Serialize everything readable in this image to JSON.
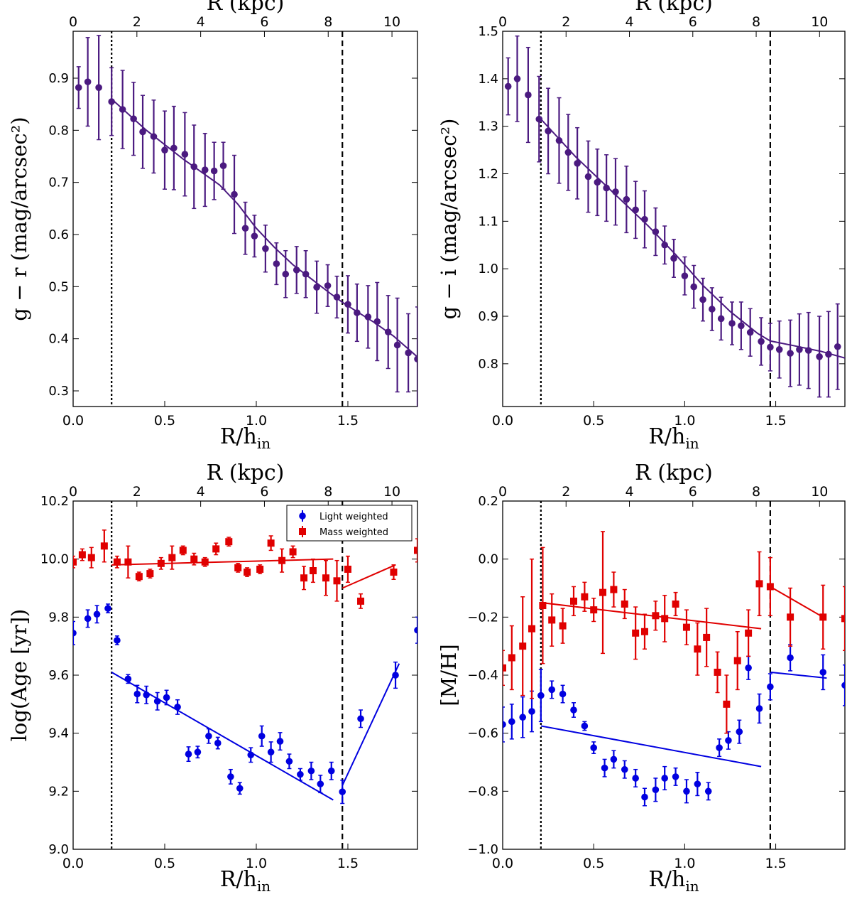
{
  "chart_data": [
    {
      "type": "scatter",
      "id": "gr",
      "ylabel": "g − r (mag/arcsec²)",
      "xlabel": "R/h_in",
      "top_xlabel": "R (kpc)",
      "xlim": [
        0.0,
        1.88
      ],
      "ylim": [
        0.27,
        0.99
      ],
      "xticks": [
        0.0,
        0.5,
        1.0,
        1.5
      ],
      "xtick_labels": [
        "0.0",
        "0.5",
        "1.0",
        "1.5"
      ],
      "yticks": [
        0.3,
        0.4,
        0.5,
        0.6,
        0.7,
        0.8,
        0.9
      ],
      "ytick_labels": [
        "0.3",
        "0.4",
        "0.5",
        "0.6",
        "0.7",
        "0.8",
        "0.9"
      ],
      "top_xlim": [
        0.0,
        10.8
      ],
      "top_xticks": [
        0,
        2,
        4,
        6,
        8,
        10
      ],
      "top_xtick_labels": [
        "0",
        "2",
        "4",
        "6",
        "8",
        "10"
      ],
      "vlines": [
        {
          "x": 0.21,
          "style": "dotted"
        },
        {
          "x": 1.47,
          "style": "dashed"
        }
      ],
      "series": [
        {
          "name": "g-r",
          "color": "#4b1a80",
          "marker": "circle",
          "x": [
            0.03,
            0.08,
            0.14,
            0.21,
            0.27,
            0.33,
            0.38,
            0.44,
            0.5,
            0.55,
            0.61,
            0.66,
            0.72,
            0.77,
            0.82,
            0.88,
            0.94,
            0.99,
            1.05,
            1.11,
            1.16,
            1.22,
            1.27,
            1.33,
            1.39,
            1.44,
            1.5,
            1.55,
            1.61,
            1.66,
            1.72,
            1.77,
            1.83,
            1.88
          ],
          "y": [
            0.882,
            0.893,
            0.882,
            0.855,
            0.84,
            0.822,
            0.797,
            0.788,
            0.762,
            0.766,
            0.754,
            0.73,
            0.724,
            0.722,
            0.732,
            0.677,
            0.612,
            0.597,
            0.573,
            0.544,
            0.524,
            0.532,
            0.524,
            0.499,
            0.502,
            0.48,
            0.466,
            0.45,
            0.442,
            0.433,
            0.413,
            0.388,
            0.373,
            0.361
          ],
          "err": [
            0.04,
            0.085,
            0.1,
            0.065,
            0.075,
            0.07,
            0.07,
            0.07,
            0.075,
            0.08,
            0.08,
            0.08,
            0.07,
            0.055,
            0.045,
            0.075,
            0.05,
            0.04,
            0.045,
            0.04,
            0.045,
            0.045,
            0.045,
            0.05,
            0.04,
            0.04,
            0.055,
            0.055,
            0.06,
            0.075,
            0.07,
            0.09,
            0.075,
            0.1
          ]
        }
      ],
      "fit_lines": [
        {
          "color": "#4b1a80",
          "x": [
            0.21,
            0.4,
            0.6,
            0.8,
            0.9,
            1.0,
            1.1,
            1.2,
            1.3,
            1.4,
            1.47,
            1.55,
            1.65,
            1.75,
            1.88
          ],
          "y": [
            0.86,
            0.8,
            0.745,
            0.695,
            0.658,
            0.612,
            0.575,
            0.542,
            0.515,
            0.488,
            0.47,
            0.452,
            0.43,
            0.405,
            0.365
          ]
        }
      ]
    },
    {
      "type": "scatter",
      "id": "gi",
      "ylabel": "g − i (mag/arcsec²)",
      "xlabel": "R/h_in",
      "top_xlabel": "R (kpc)",
      "xlim": [
        0.0,
        1.88
      ],
      "ylim": [
        0.71,
        1.5
      ],
      "xticks": [
        0.0,
        0.5,
        1.0,
        1.5
      ],
      "xtick_labels": [
        "0.0",
        "0.5",
        "1.0",
        "1.5"
      ],
      "yticks": [
        0.8,
        0.9,
        1.0,
        1.1,
        1.2,
        1.3,
        1.4,
        1.5
      ],
      "ytick_labels": [
        "0.8",
        "0.9",
        "1.0",
        "1.1",
        "1.2",
        "1.3",
        "1.4",
        "1.5"
      ],
      "top_xlim": [
        0.0,
        10.8
      ],
      "top_xticks": [
        0,
        2,
        4,
        6,
        8,
        10
      ],
      "top_xtick_labels": [
        "0",
        "2",
        "4",
        "6",
        "8",
        "10"
      ],
      "vlines": [
        {
          "x": 0.21,
          "style": "dotted"
        },
        {
          "x": 1.47,
          "style": "dashed"
        }
      ],
      "series": [
        {
          "name": "g-i",
          "color": "#4b1a80",
          "marker": "circle",
          "x": [
            0.03,
            0.08,
            0.14,
            0.2,
            0.25,
            0.31,
            0.36,
            0.41,
            0.47,
            0.52,
            0.57,
            0.62,
            0.68,
            0.73,
            0.78,
            0.84,
            0.89,
            0.94,
            1.0,
            1.05,
            1.1,
            1.15,
            1.2,
            1.26,
            1.31,
            1.36,
            1.42,
            1.47,
            1.52,
            1.58,
            1.63,
            1.68,
            1.74,
            1.79,
            1.84
          ],
          "y": [
            1.384,
            1.4,
            1.366,
            1.315,
            1.29,
            1.27,
            1.245,
            1.222,
            1.194,
            1.182,
            1.17,
            1.162,
            1.146,
            1.124,
            1.104,
            1.078,
            1.05,
            1.022,
            0.985,
            0.962,
            0.935,
            0.915,
            0.895,
            0.885,
            0.88,
            0.866,
            0.847,
            0.835,
            0.83,
            0.822,
            0.83,
            0.828,
            0.815,
            0.82,
            0.836
          ],
          "err": [
            0.06,
            0.09,
            0.1,
            0.09,
            0.09,
            0.09,
            0.08,
            0.075,
            0.075,
            0.07,
            0.07,
            0.07,
            0.07,
            0.06,
            0.06,
            0.05,
            0.04,
            0.04,
            0.04,
            0.045,
            0.045,
            0.045,
            0.045,
            0.045,
            0.05,
            0.05,
            0.05,
            0.05,
            0.06,
            0.07,
            0.075,
            0.08,
            0.085,
            0.09,
            0.09
          ]
        }
      ],
      "fit_lines": [
        {
          "color": "#4b1a80",
          "x": [
            0.21,
            0.4,
            0.6,
            0.8,
            0.95,
            1.1,
            1.25,
            1.4,
            1.47,
            1.6,
            1.75,
            1.88
          ],
          "y": [
            1.315,
            1.236,
            1.163,
            1.09,
            1.03,
            0.965,
            0.91,
            0.864,
            0.848,
            0.838,
            0.826,
            0.812
          ]
        }
      ]
    },
    {
      "type": "scatter",
      "id": "age",
      "ylabel": "log(Age [yr])",
      "xlabel": "R/h_in",
      "top_xlabel": "R (kpc)",
      "xlim": [
        0.0,
        1.88
      ],
      "ylim": [
        9.0,
        10.2
      ],
      "xticks": [
        0.0,
        0.5,
        1.0,
        1.5
      ],
      "xtick_labels": [
        "0.0",
        "0.5",
        "1.0",
        "1.5"
      ],
      "yticks": [
        9.0,
        9.2,
        9.4,
        9.6,
        9.8,
        10.0,
        10.2
      ],
      "ytick_labels": [
        "9.0",
        "9.2",
        "9.4",
        "9.6",
        "9.8",
        "10.0",
        "10.2"
      ],
      "top_xlim": [
        0.0,
        10.8
      ],
      "top_xticks": [
        0,
        2,
        4,
        6,
        8,
        10
      ],
      "top_xtick_labels": [
        "0",
        "2",
        "4",
        "6",
        "8",
        "10"
      ],
      "vlines": [
        {
          "x": 0.21,
          "style": "dotted"
        },
        {
          "x": 1.47,
          "style": "dashed"
        }
      ],
      "legend": {
        "position": "top-right",
        "entries": [
          "Light weighted",
          "Mass weighted"
        ]
      },
      "series": [
        {
          "name": "Light weighted",
          "color": "#0000e0",
          "marker": "circle",
          "x": [
            0.0,
            0.08,
            0.13,
            0.19,
            0.24,
            0.3,
            0.35,
            0.4,
            0.46,
            0.51,
            0.57,
            0.63,
            0.68,
            0.74,
            0.79,
            0.86,
            0.91,
            0.97,
            1.03,
            1.08,
            1.13,
            1.18,
            1.24,
            1.3,
            1.35,
            1.41,
            1.47,
            1.57,
            1.76,
            1.88
          ],
          "y": [
            9.745,
            9.795,
            9.81,
            9.83,
            9.72,
            9.587,
            9.535,
            9.532,
            9.51,
            9.523,
            9.49,
            9.328,
            9.335,
            9.39,
            9.366,
            9.25,
            9.21,
            9.325,
            9.39,
            9.335,
            9.372,
            9.303,
            9.258,
            9.27,
            9.225,
            9.27,
            9.198,
            9.45,
            9.6,
            9.755
          ],
          "err": [
            0.04,
            0.03,
            0.03,
            0.015,
            0.015,
            0.015,
            0.03,
            0.03,
            0.03,
            0.025,
            0.025,
            0.025,
            0.02,
            0.025,
            0.02,
            0.025,
            0.02,
            0.025,
            0.035,
            0.035,
            0.03,
            0.025,
            0.02,
            0.03,
            0.03,
            0.03,
            0.04,
            0.03,
            0.045,
            0.045
          ]
        },
        {
          "name": "Mass weighted",
          "color": "#e00000",
          "marker": "square",
          "x": [
            0.0,
            0.05,
            0.1,
            0.17,
            0.24,
            0.3,
            0.36,
            0.42,
            0.48,
            0.54,
            0.6,
            0.66,
            0.72,
            0.78,
            0.85,
            0.9,
            0.95,
            1.02,
            1.08,
            1.14,
            1.2,
            1.26,
            1.31,
            1.38,
            1.44,
            1.5,
            1.57,
            1.75,
            1.88
          ],
          "y": [
            9.99,
            10.015,
            10.005,
            10.045,
            9.99,
            9.99,
            9.94,
            9.95,
            9.985,
            10.005,
            10.03,
            10.0,
            9.99,
            10.035,
            10.06,
            9.97,
            9.955,
            9.965,
            10.055,
            9.995,
            10.025,
            9.935,
            9.96,
            9.935,
            9.925,
            9.965,
            9.855,
            9.955,
            10.03
          ],
          "err": [
            0.02,
            0.02,
            0.035,
            0.055,
            0.02,
            0.055,
            0.015,
            0.015,
            0.02,
            0.04,
            0.015,
            0.02,
            0.015,
            0.02,
            0.015,
            0.015,
            0.015,
            0.015,
            0.025,
            0.04,
            0.02,
            0.04,
            0.04,
            0.06,
            0.07,
            0.045,
            0.025,
            0.025,
            0.04
          ]
        }
      ],
      "fit_lines": [
        {
          "color": "#0000e0",
          "x": [
            0.21,
            1.42
          ],
          "y": [
            9.61,
            9.17
          ]
        },
        {
          "color": "#0000e0",
          "x": [
            1.47,
            1.78
          ],
          "y": [
            9.22,
            9.64
          ]
        },
        {
          "color": "#e00000",
          "x": [
            0.21,
            1.42
          ],
          "y": [
            9.98,
            10.0
          ]
        },
        {
          "color": "#e00000",
          "x": [
            1.47,
            1.76
          ],
          "y": [
            9.9,
            9.98
          ]
        }
      ]
    },
    {
      "type": "scatter",
      "id": "mh",
      "ylabel": "[M/H]",
      "xlabel": "R/h_in",
      "top_xlabel": "R (kpc)",
      "xlim": [
        0.0,
        1.88
      ],
      "ylim": [
        -1.0,
        0.2
      ],
      "xticks": [
        0.0,
        0.5,
        1.0,
        1.5
      ],
      "xtick_labels": [
        "0.0",
        "0.5",
        "1.0",
        "1.5"
      ],
      "yticks": [
        -1.0,
        -0.8,
        -0.6,
        -0.4,
        -0.2,
        0.0,
        0.2
      ],
      "ytick_labels": [
        "−1.0",
        "−0.8",
        "−0.6",
        "−0.4",
        "−0.2",
        "0.0",
        "0.2"
      ],
      "top_xlim": [
        0.0,
        10.8
      ],
      "top_xticks": [
        0,
        2,
        4,
        6,
        8,
        10
      ],
      "top_xtick_labels": [
        "0",
        "2",
        "4",
        "6",
        "8",
        "10"
      ],
      "vlines": [
        {
          "x": 0.21,
          "style": "dotted"
        },
        {
          "x": 1.47,
          "style": "dashed"
        }
      ],
      "series": [
        {
          "name": "Light weighted",
          "color": "#0000e0",
          "marker": "circle",
          "x": [
            0.0,
            0.05,
            0.11,
            0.16,
            0.21,
            0.27,
            0.33,
            0.39,
            0.45,
            0.5,
            0.56,
            0.61,
            0.67,
            0.73,
            0.78,
            0.84,
            0.89,
            0.95,
            1.01,
            1.07,
            1.13,
            1.19,
            1.24,
            1.3,
            1.35,
            1.41,
            1.47,
            1.58,
            1.76,
            1.88
          ],
          "y": [
            -0.57,
            -0.56,
            -0.545,
            -0.525,
            -0.47,
            -0.45,
            -0.465,
            -0.52,
            -0.575,
            -0.65,
            -0.72,
            -0.69,
            -0.725,
            -0.755,
            -0.82,
            -0.795,
            -0.755,
            -0.75,
            -0.8,
            -0.775,
            -0.8,
            -0.65,
            -0.625,
            -0.595,
            -0.375,
            -0.515,
            -0.44,
            -0.34,
            -0.39,
            -0.435
          ],
          "err": [
            0.06,
            0.06,
            0.07,
            0.07,
            0.09,
            0.03,
            0.03,
            0.025,
            0.015,
            0.02,
            0.03,
            0.03,
            0.03,
            0.03,
            0.03,
            0.04,
            0.04,
            0.03,
            0.04,
            0.04,
            0.03,
            0.03,
            0.03,
            0.04,
            0.04,
            0.05,
            0.045,
            0.045,
            0.06,
            0.07
          ]
        },
        {
          "name": "Mass weighted",
          "color": "#e00000",
          "marker": "square",
          "x": [
            0.0,
            0.05,
            0.11,
            0.16,
            0.22,
            0.27,
            0.33,
            0.39,
            0.45,
            0.5,
            0.55,
            0.61,
            0.67,
            0.73,
            0.78,
            0.84,
            0.89,
            0.95,
            1.01,
            1.07,
            1.12,
            1.18,
            1.23,
            1.29,
            1.35,
            1.41,
            1.47,
            1.58,
            1.76,
            1.88
          ],
          "y": [
            -0.375,
            -0.34,
            -0.3,
            -0.24,
            -0.16,
            -0.21,
            -0.23,
            -0.145,
            -0.13,
            -0.175,
            -0.115,
            -0.105,
            -0.155,
            -0.255,
            -0.25,
            -0.195,
            -0.205,
            -0.155,
            -0.235,
            -0.31,
            -0.27,
            -0.39,
            -0.5,
            -0.35,
            -0.255,
            -0.085,
            -0.095,
            -0.2,
            -0.2,
            -0.205
          ],
          "err": [
            0.06,
            0.11,
            0.17,
            0.24,
            0.2,
            0.09,
            0.06,
            0.05,
            0.05,
            0.04,
            0.21,
            0.06,
            0.05,
            0.09,
            0.06,
            0.05,
            0.08,
            0.04,
            0.06,
            0.09,
            0.1,
            0.07,
            0.1,
            0.1,
            0.08,
            0.11,
            0.1,
            0.1,
            0.11,
            0.11
          ]
        }
      ],
      "fit_lines": [
        {
          "color": "#0000e0",
          "x": [
            0.21,
            1.42
          ],
          "y": [
            -0.575,
            -0.715
          ]
        },
        {
          "color": "#0000e0",
          "x": [
            1.47,
            1.78
          ],
          "y": [
            -0.39,
            -0.41
          ]
        },
        {
          "color": "#e00000",
          "x": [
            0.21,
            1.42
          ],
          "y": [
            -0.15,
            -0.24
          ]
        },
        {
          "color": "#e00000",
          "x": [
            1.47,
            1.76
          ],
          "y": [
            -0.095,
            -0.2
          ]
        }
      ]
    }
  ]
}
